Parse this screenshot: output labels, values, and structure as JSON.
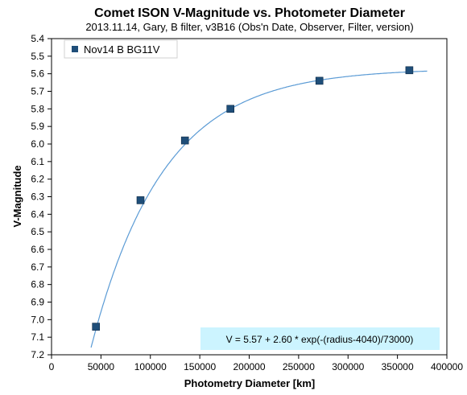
{
  "chart_data": {
    "type": "scatter",
    "title": "Comet ISON V-Magnitude vs. Photometer Diameter",
    "subtitle": "2013.11.14, Gary, B filter, v3B16 (Obs'n Date, Observer, Filter, version)",
    "xlabel": "Photometry Diameter  [km]",
    "ylabel": "V-Magnitude",
    "xlim": [
      0,
      400000
    ],
    "ylim": [
      5.4,
      7.2
    ],
    "y_inverted": true,
    "x_ticks": [
      0,
      50000,
      100000,
      150000,
      200000,
      250000,
      300000,
      350000,
      400000
    ],
    "x_tick_labels": [
      "0",
      "50000",
      "100000",
      "150000",
      "200000",
      "250000",
      "300000",
      "350000",
      "400000"
    ],
    "y_ticks": [
      5.4,
      5.5,
      5.6,
      5.7,
      5.8,
      5.9,
      6.0,
      6.1,
      6.2,
      6.3,
      6.4,
      6.5,
      6.6,
      6.7,
      6.8,
      6.9,
      7.0,
      7.1,
      7.2
    ],
    "y_tick_labels": [
      "5.4",
      "5.5",
      "5.6",
      "5.7",
      "5.8",
      "5.9",
      "6.0",
      "6.1",
      "6.2",
      "6.3",
      "6.4",
      "6.5",
      "6.6",
      "6.7",
      "6.8",
      "6.9",
      "7.0",
      "7.1",
      "7.2"
    ],
    "grid": false,
    "legend_position": "top-left",
    "series": [
      {
        "name": "Nov14 B BG11V",
        "marker": "square",
        "color": "#1f4e79",
        "x": [
          45000,
          90000,
          135000,
          181000,
          271000,
          362000
        ],
        "y": [
          7.04,
          6.32,
          5.98,
          5.8,
          5.64,
          5.58
        ]
      }
    ],
    "fit": {
      "color": "#5b9bd5",
      "x_start": 40000,
      "x_end": 380000,
      "asymptote": 5.57,
      "amplitude": 2.6,
      "offset": 4040,
      "scale": 73000
    },
    "annotations": [
      {
        "text": "V = 5.57 + 2.60 * exp(-(radius-4040)/73000)",
        "position": "bottom-right",
        "background": "#ccf4ff"
      }
    ]
  }
}
